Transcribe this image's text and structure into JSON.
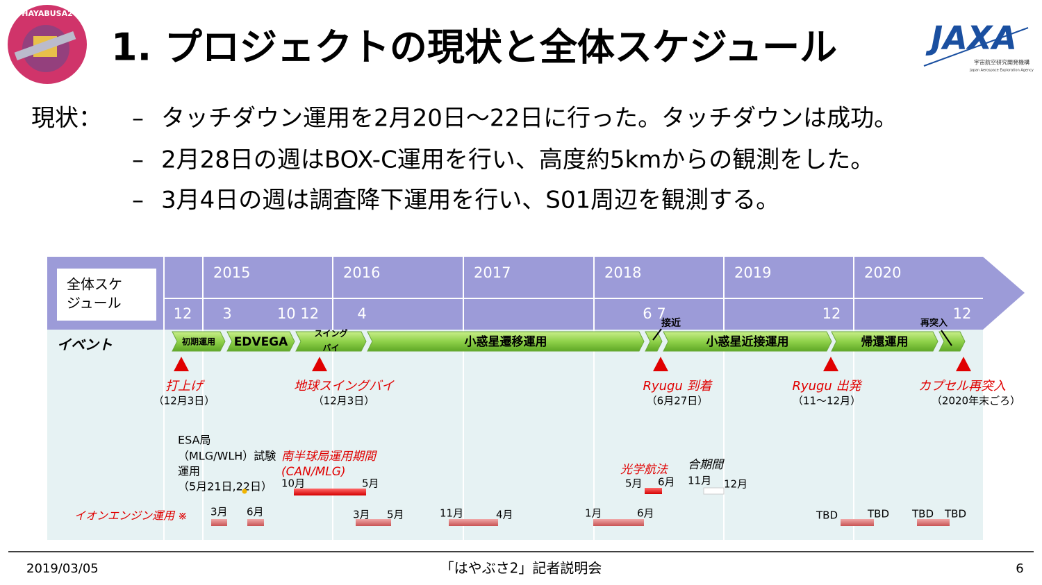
{
  "header": {
    "title": "1. プロジェクトの現状と全体スケジュール",
    "logo_left": "HAYABUSA2",
    "logo_right": "JAXA",
    "logo_right_sub": [
      "宇宙航空研究開発機構",
      "Japan Aerospace Exploration Agency"
    ]
  },
  "status": {
    "label": "現状：",
    "bullet": "–",
    "items": [
      "タッチダウン運用を2月20日～22日に行った。タッチダウンは成功。",
      "2月28日の週はBOX-C運用を行い、高度約5kmからの観測をした。",
      "3月4日の週は調査降下運用を行い、S01周辺を観測する。"
    ]
  },
  "schedule": {
    "corner": [
      "全体スケ",
      "ジュール"
    ],
    "years": [
      "2015",
      "2016",
      "2017",
      "2018",
      "2019",
      "2020"
    ],
    "months": [
      "12",
      "3",
      "10 12",
      "4",
      "6 7",
      "12",
      "12"
    ],
    "row_label": "イベント",
    "phases": [
      "初期運用",
      "EDVEGA",
      [
        "スイング",
        "バイ"
      ],
      "小惑星遷移運用",
      "小惑星近接運用",
      "帰還運用"
    ],
    "phase_notes": [
      "接近",
      "再突入"
    ],
    "milestones": [
      {
        "label": "打上げ",
        "date": "（12月3日）"
      },
      {
        "label": "地球スイングバイ",
        "date": "（12月3日）"
      },
      {
        "label": "Ryugu 到着",
        "date": "（6月27日）"
      },
      {
        "label": "Ryugu 出発",
        "date": "（11～12月）"
      },
      {
        "label": "カプセル再突入",
        "date": "（2020年末ごろ）"
      }
    ],
    "esa_note": [
      "ESA局",
      "（MLG/WLH）試験",
      "運用",
      "（5月21日,22日）"
    ],
    "south_station": {
      "label": "南半球局運用期間",
      "sub": "(CAN/MLG)",
      "start": "10月",
      "end": "5月"
    },
    "optical_nav": {
      "label": "光学航法",
      "start": "5月",
      "end": "6月"
    },
    "conjunction": {
      "label": "合期間",
      "start": "11月",
      "end": "12月"
    },
    "ion_engine": {
      "label": "イオンエンジン運用 ※",
      "labels": [
        "3月",
        "6月",
        "3月",
        "5月",
        "11月",
        "4月",
        "1月",
        "6月",
        "TBD",
        "TBD",
        "TBD",
        "TBD"
      ]
    }
  },
  "footer": {
    "date": "2019/03/05",
    "center": "「はやぶさ2」記者説明会",
    "page": "6"
  }
}
